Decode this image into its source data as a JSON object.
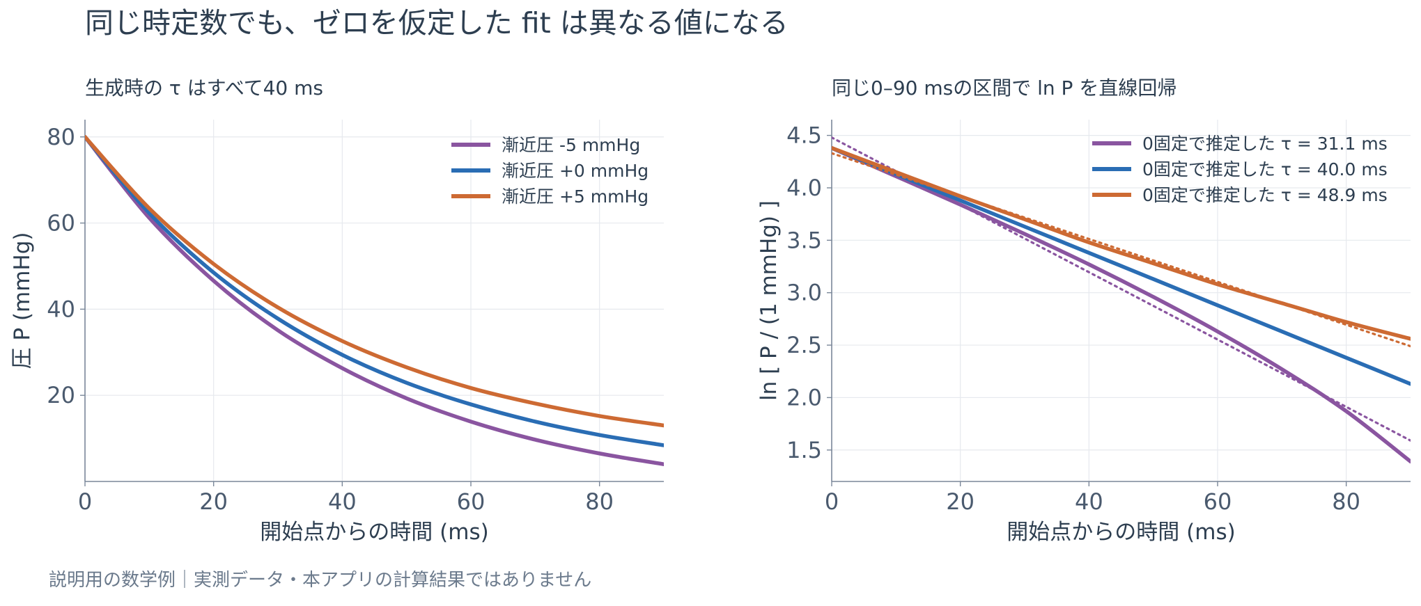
{
  "title": "同じ時定数でも、ゼロを仮定した fit は異なる値になる",
  "footnote": "説明用の数学例｜実測データ・本アプリの計算結果ではありません",
  "chart_data": [
    {
      "type": "line",
      "title": "生成時の τ はすべて40 ms",
      "xlabel": "開始点からの時間 (ms)",
      "ylabel": "圧 P (mmHg)",
      "xlim": [
        0,
        90
      ],
      "ylim": [
        0,
        84
      ],
      "xticks": [
        0,
        20,
        40,
        60,
        80
      ],
      "yticks": [
        20,
        40,
        60,
        80
      ],
      "grid": true,
      "legend": "top-right",
      "series": [
        {
          "name": "漸近圧 -5 mmHg",
          "color": "#8a55a0",
          "x": [
            0,
            10,
            20,
            30,
            40,
            50,
            60,
            70,
            80,
            90
          ],
          "y": [
            80.0,
            61.2,
            46.6,
            35.1,
            26.3,
            19.3,
            13.9,
            9.7,
            6.5,
            4.0
          ]
        },
        {
          "name": "漸近圧 +0 mmHg",
          "color": "#2a6db4",
          "x": [
            0,
            10,
            20,
            30,
            40,
            50,
            60,
            70,
            80,
            90
          ],
          "y": [
            80.0,
            62.3,
            48.5,
            37.8,
            29.4,
            22.9,
            17.9,
            13.9,
            10.8,
            8.4
          ]
        },
        {
          "name": "漸近圧 +5 mmHg",
          "color": "#cd6a33",
          "x": [
            0,
            10,
            20,
            30,
            40,
            50,
            60,
            70,
            80,
            90
          ],
          "y": [
            80.0,
            63.4,
            50.5,
            40.4,
            32.6,
            26.5,
            21.7,
            18.1,
            15.2,
            13.0
          ]
        }
      ]
    },
    {
      "type": "line",
      "title": "同じ0–90 msの区間で ln P を直線回帰",
      "xlabel": "開始点からの時間 (ms)",
      "ylabel": "ln [ P / (1 mmHg) ]",
      "xlim": [
        0,
        90
      ],
      "ylim": [
        1.2,
        4.65
      ],
      "xticks": [
        0,
        20,
        40,
        60,
        80
      ],
      "yticks": [
        1.5,
        2.0,
        2.5,
        3.0,
        3.5,
        4.0,
        4.5
      ],
      "grid": true,
      "legend": "top-right",
      "series": [
        {
          "name": "0固定で推定した τ = 31.1 ms",
          "color": "#8a55a0",
          "x": [
            0,
            10,
            20,
            30,
            40,
            50,
            60,
            70,
            80,
            90
          ],
          "y": [
            4.38,
            4.11,
            3.84,
            3.56,
            3.27,
            2.96,
            2.63,
            2.27,
            1.87,
            1.39
          ],
          "fit": [
            4.48,
            1.59
          ]
        },
        {
          "name": "0固定で推定した τ = 40.0 ms",
          "color": "#2a6db4",
          "x": [
            0,
            10,
            20,
            30,
            40,
            50,
            60,
            70,
            80,
            90
          ],
          "y": [
            4.38,
            4.13,
            3.88,
            3.63,
            3.38,
            3.13,
            2.88,
            2.63,
            2.38,
            2.13
          ],
          "fit": [
            4.38,
            2.13
          ]
        },
        {
          "name": "0固定で推定した τ = 48.9 ms",
          "color": "#cd6a33",
          "x": [
            0,
            10,
            20,
            30,
            40,
            50,
            60,
            70,
            80,
            90
          ],
          "y": [
            4.38,
            4.15,
            3.92,
            3.7,
            3.48,
            3.28,
            3.08,
            2.9,
            2.72,
            2.56
          ],
          "fit": [
            4.33,
            2.49
          ]
        }
      ]
    }
  ]
}
